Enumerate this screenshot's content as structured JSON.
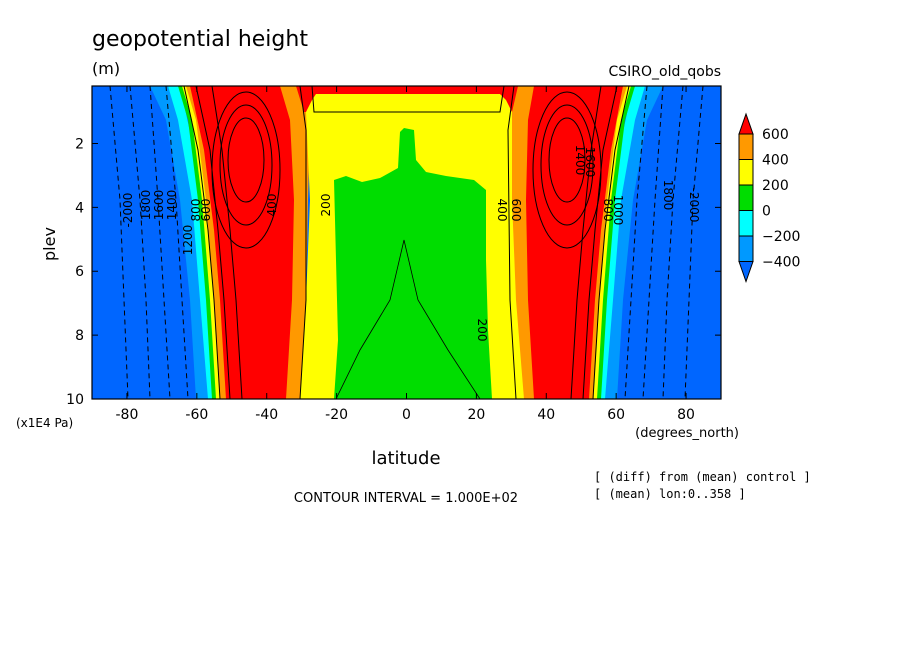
{
  "chart_data": {
    "type": "heatmap",
    "title": "geopotential height",
    "units": "(m)",
    "model_label": "CSIRO_old_qobs",
    "xlabel": "latitude",
    "xunits": "(degrees_north)",
    "ylabel": "plev",
    "yunits": "(x1E4 Pa)",
    "xlim": [
      -90,
      90
    ],
    "ylim": [
      10,
      0.2
    ],
    "x_ticks": [
      -80,
      -60,
      -40,
      -20,
      0,
      20,
      40,
      60,
      80
    ],
    "x_tick_labels": [
      "-80",
      "-60",
      "-40",
      "-20",
      "0",
      "20",
      "40",
      "60",
      "80"
    ],
    "y_ticks": [
      2,
      4,
      6,
      8,
      10
    ],
    "y_tick_labels": [
      "2",
      "4",
      "6",
      "8",
      "10"
    ],
    "contour_interval_text": "CONTOUR INTERVAL = 1.000E+02",
    "note_lines": [
      "[ (diff) from (mean) control ]",
      "[ (mean) lon:0..358 ]"
    ],
    "colorbar": {
      "levels": [
        600,
        400,
        200,
        0,
        -200,
        -400
      ],
      "level_labels": [
        "600",
        "400",
        "200",
        "0",
        "−200",
        "−400"
      ],
      "colors": [
        "#ff0000",
        "#ff9900",
        "#ffff00",
        "#00dd00",
        "#00ffff",
        "#0099ff",
        "#0066ff"
      ]
    },
    "contour_labels_left": [
      "-2000",
      "1800",
      "1600",
      "1400",
      "1200",
      "800",
      "600",
      "400",
      "200"
    ],
    "contour_labels_right": [
      "1400",
      "1600",
      "1800",
      "-2000",
      "400",
      "600",
      "800",
      "1000",
      "200"
    ],
    "field_description": "zonal-mean difference: broad positive anomaly 0..+200 m in tropics, +600 m maxima near 45S and 45N at ~2.5e4 Pa, large negative values (below -400 m) poleward of 60 degrees"
  }
}
